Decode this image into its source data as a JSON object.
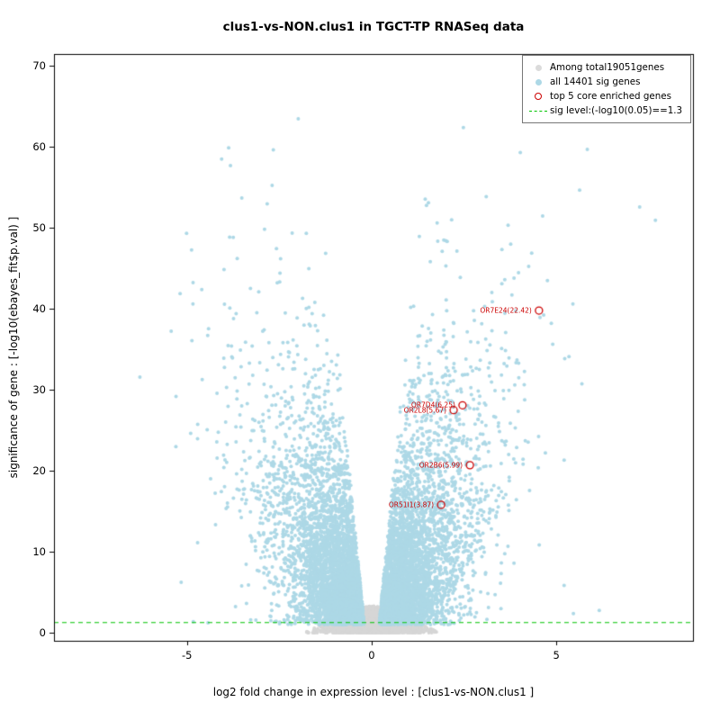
{
  "chart_data": {
    "type": "scatter",
    "title": "clus1-vs-NON.clus1 in TGCT-TP RNASeq data",
    "xlabel": "log2 fold change in expression level : [clus1-vs-NON.clus1 ]",
    "ylabel": "significance of gene : [-log10(ebayes_fit$p.val) ]",
    "xlim": [
      -8.6,
      8.7
    ],
    "ylim": [
      -1,
      71.5
    ],
    "xticks": [
      -5,
      0,
      5
    ],
    "yticks": [
      0,
      10,
      20,
      30,
      40,
      50,
      60,
      70
    ],
    "grid": false,
    "legend_position": "top-right",
    "sig_line": {
      "y": 1.3,
      "color": "#00C400",
      "style": "dashed"
    },
    "counts": {
      "total_genes": 19051,
      "sig_genes": 14401,
      "core_enriched": 5
    },
    "legend": {
      "items": [
        {
          "label": "Among total19051genes",
          "marker": "filled-circle",
          "color": "#DBDBDB"
        },
        {
          "label": "all 14401 sig genes",
          "marker": "filled-circle",
          "color": "#ADD8E6"
        },
        {
          "label": "top 5 core enriched genes",
          "marker": "open-circle",
          "color": "#CC0000"
        },
        {
          "label": "sig level:(-log10(0.05)==1.3",
          "marker": "dashed-line",
          "color": "#00C400"
        }
      ]
    },
    "highlighted_genes": [
      {
        "label": "OR7E24(22.42)",
        "x": 4.53,
        "y": 39.8
      },
      {
        "label": "OR7D4(6.25)",
        "x": 2.46,
        "y": 28.1
      },
      {
        "label": "OR2L8(5.67)",
        "x": 2.22,
        "y": 27.5
      },
      {
        "label": "OR2B6(5.99)",
        "x": 2.66,
        "y": 20.7
      },
      {
        "label": "OR51I1(3.87)",
        "x": 1.88,
        "y": 15.8
      }
    ],
    "point_cloud": {
      "seed": 42,
      "point_radius": 2.0,
      "background": {
        "count": 2400,
        "color": "#D6D6D6",
        "max_y": 3.3,
        "max_abs_x": 1.75
      },
      "significant": {
        "count": 9000,
        "color": "#ADD8E6",
        "max_y": 68,
        "max_abs_x": 8.4
      }
    }
  }
}
